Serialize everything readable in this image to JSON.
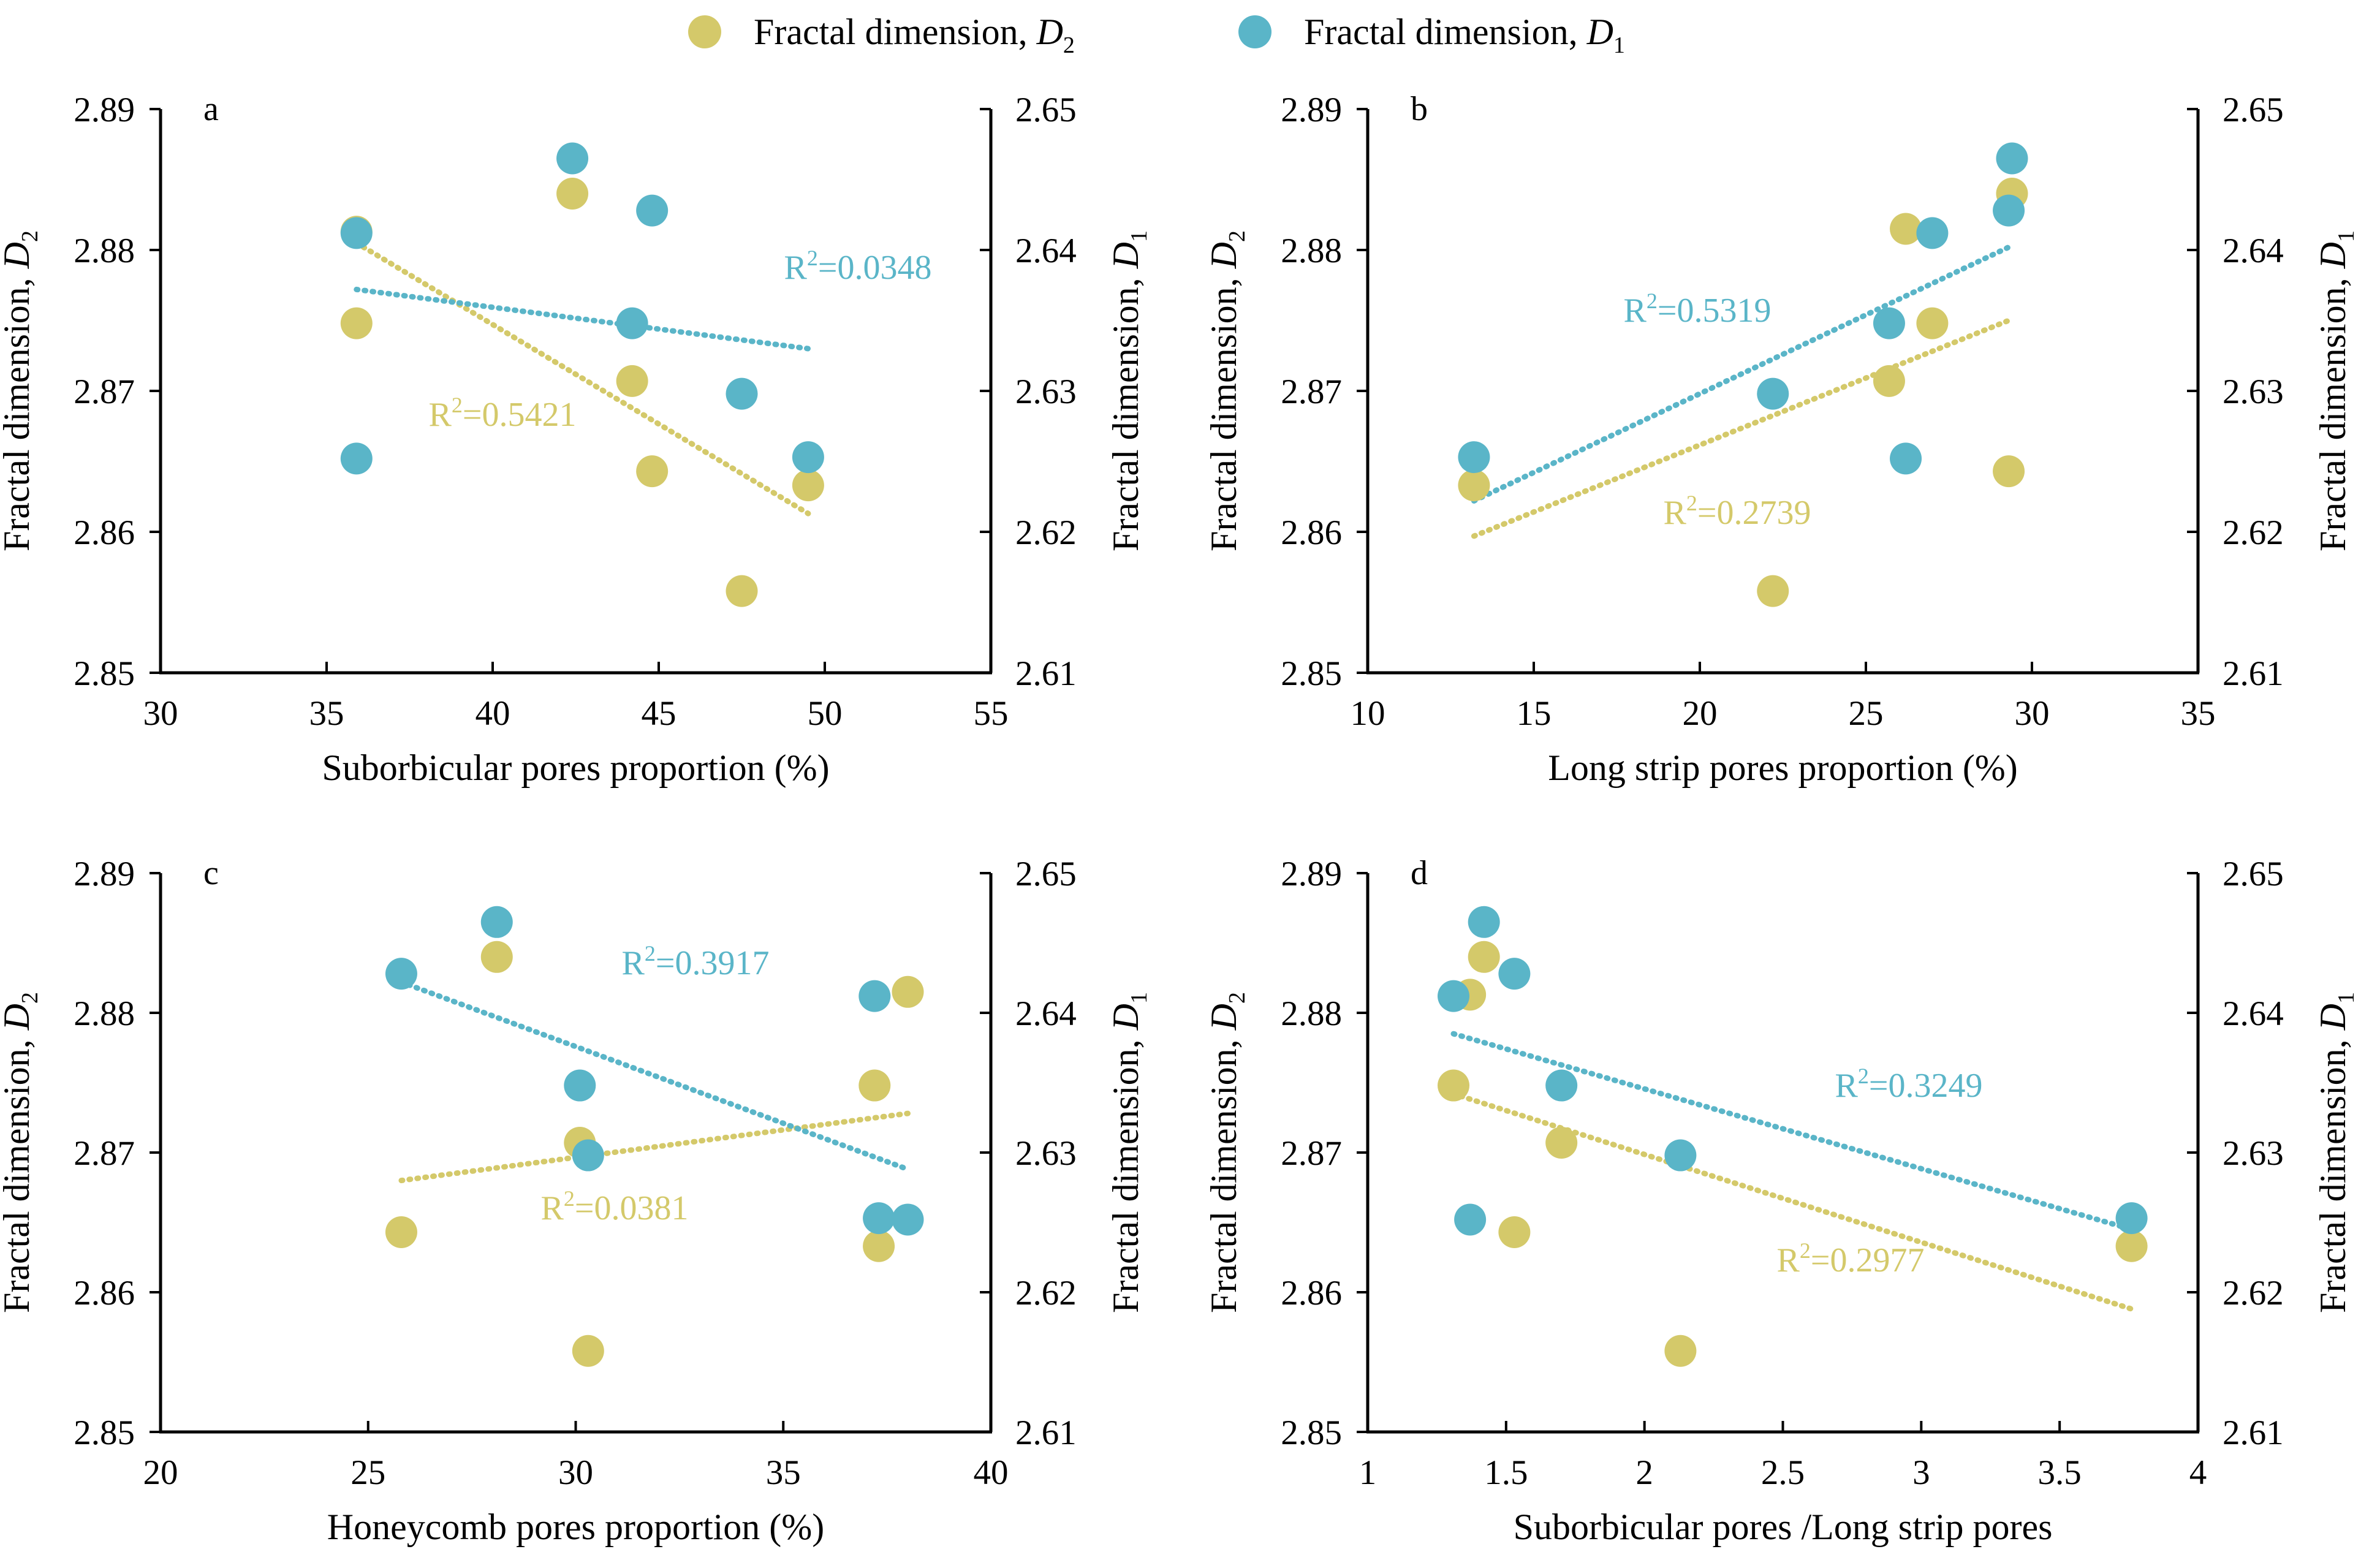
{
  "colors": {
    "d2": "#d4c96a",
    "d1": "#5ab5c8",
    "axis": "#000000"
  },
  "legend": [
    {
      "series": "D2",
      "prefix": "Fractal dimension, ",
      "var": "D",
      "sub": "2"
    },
    {
      "series": "D1",
      "prefix": "Fractal dimension, ",
      "var": "D",
      "sub": "1"
    }
  ],
  "chart_data": [
    {
      "type": "scatter",
      "panel": "a",
      "xlabel": "Suborbicular pores proportion (%)",
      "ylabel_left": {
        "prefix": "Fractal dimension, ",
        "var": "D",
        "sub": "2"
      },
      "ylabel_right": {
        "prefix": "Fractal dimension, ",
        "var": "D",
        "sub": "1"
      },
      "xlim": [
        30,
        55
      ],
      "xticks": [
        30,
        35,
        40,
        45,
        50,
        55
      ],
      "ylim_left": [
        2.85,
        2.89
      ],
      "yticks_left": [
        "2.85",
        "2.86",
        "2.87",
        "2.88",
        "2.89"
      ],
      "ylim_right": [
        2.61,
        2.65
      ],
      "yticks_right": [
        "2.61",
        "2.62",
        "2.63",
        "2.64",
        "2.65"
      ],
      "series": [
        {
          "name": "D2",
          "x": [
            35.9,
            35.9,
            42.4,
            44.2,
            44.8,
            47.5,
            49.5
          ],
          "y": [
            2.8813,
            2.8748,
            2.884,
            2.8707,
            2.8643,
            2.8558,
            2.8633
          ],
          "trend": {
            "x": [
              35.9,
              49.5
            ],
            "y": [
              2.8805,
              2.8613
            ]
          },
          "r2": "0.5421"
        },
        {
          "name": "D1",
          "x": [
            35.9,
            35.9,
            42.4,
            44.2,
            44.8,
            47.5,
            49.5
          ],
          "y": [
            2.6412,
            2.6252,
            2.6465,
            2.6348,
            2.6428,
            2.6298,
            2.6253
          ],
          "trend": {
            "x": [
              35.9,
              49.5
            ],
            "y": [
              2.6372,
              2.633
            ]
          },
          "r2": "0.0348"
        }
      ]
    },
    {
      "type": "scatter",
      "panel": "b",
      "xlabel": "Long strip pores proportion (%)",
      "ylabel_left": {
        "prefix": "Fractal dimension, ",
        "var": "D",
        "sub": "2"
      },
      "ylabel_right": {
        "prefix": "Fractal dimension, ",
        "var": "D",
        "sub": "1"
      },
      "xlim": [
        10,
        35
      ],
      "xticks": [
        10,
        15,
        20,
        25,
        30,
        35
      ],
      "ylim_left": [
        2.85,
        2.89
      ],
      "yticks_left": [
        "2.85",
        "2.86",
        "2.87",
        "2.88",
        "2.89"
      ],
      "ylim_right": [
        2.61,
        2.65
      ],
      "yticks_right": [
        "2.61",
        "2.62",
        "2.63",
        "2.64",
        "2.65"
      ],
      "series": [
        {
          "name": "D2",
          "x": [
            13.2,
            22.2,
            25.7,
            26.2,
            27.0,
            29.3,
            29.4
          ],
          "y": [
            2.8633,
            2.8558,
            2.8707,
            2.8815,
            2.8748,
            2.8643,
            2.884
          ],
          "trend": {
            "x": [
              13.2,
              29.3
            ],
            "y": [
              2.8597,
              2.875
            ]
          },
          "r2": "0.2739"
        },
        {
          "name": "D1",
          "x": [
            13.2,
            22.2,
            25.7,
            26.2,
            27.0,
            29.3,
            29.4
          ],
          "y": [
            2.6253,
            2.6298,
            2.6348,
            2.6252,
            2.6412,
            2.6428,
            2.6465
          ],
          "trend": {
            "x": [
              13.2,
              29.3
            ],
            "y": [
              2.6222,
              2.6402
            ]
          },
          "r2": "0.5319"
        }
      ]
    },
    {
      "type": "scatter",
      "panel": "c",
      "xlabel": "Honeycomb pores proportion (%)",
      "ylabel_left": {
        "prefix": "Fractal dimension, ",
        "var": "D",
        "sub": "2"
      },
      "ylabel_right": {
        "prefix": "Fractal dimension, ",
        "var": "D",
        "sub": "1"
      },
      "xlim": [
        20,
        40
      ],
      "xticks": [
        20,
        25,
        30,
        35,
        40
      ],
      "ylim_left": [
        2.85,
        2.89
      ],
      "yticks_left": [
        "2.85",
        "2.86",
        "2.87",
        "2.88",
        "2.89"
      ],
      "ylim_right": [
        2.61,
        2.65
      ],
      "yticks_right": [
        "2.61",
        "2.62",
        "2.63",
        "2.64",
        "2.65"
      ],
      "series": [
        {
          "name": "D2",
          "x": [
            25.8,
            28.1,
            30.1,
            30.3,
            37.2,
            37.3,
            38.0
          ],
          "y": [
            2.8643,
            2.884,
            2.8707,
            2.8558,
            2.8748,
            2.8633,
            2.8815
          ],
          "trend": {
            "x": [
              25.8,
              38.0
            ],
            "y": [
              2.868,
              2.8728
            ]
          },
          "r2": "0.0381"
        },
        {
          "name": "D1",
          "x": [
            25.8,
            28.1,
            30.1,
            30.3,
            37.2,
            37.3,
            38.0
          ],
          "y": [
            2.6428,
            2.6465,
            2.6348,
            2.6298,
            2.6412,
            2.6253,
            2.6252
          ],
          "trend": {
            "x": [
              25.8,
              38.0
            ],
            "y": [
              2.6422,
              2.6288
            ]
          },
          "r2": "0.3917"
        }
      ]
    },
    {
      "type": "scatter",
      "panel": "d",
      "xlabel": "Suborbicular pores /Long strip pores",
      "ylabel_left": {
        "prefix": "Fractal dimension, ",
        "var": "D",
        "sub": "2"
      },
      "ylabel_right": {
        "prefix": "Fractal dimension, ",
        "var": "D",
        "sub": "1"
      },
      "xlim": [
        1,
        4
      ],
      "xticks": [
        "1",
        "1.5",
        "2",
        "2.5",
        "3",
        "3.5",
        "4"
      ],
      "ylim_left": [
        2.85,
        2.89
      ],
      "yticks_left": [
        "2.85",
        "2.86",
        "2.87",
        "2.88",
        "2.89"
      ],
      "ylim_right": [
        2.61,
        2.65
      ],
      "yticks_right": [
        "2.61",
        "2.62",
        "2.63",
        "2.64",
        "2.65"
      ],
      "series": [
        {
          "name": "D2",
          "x": [
            1.31,
            1.37,
            1.42,
            1.53,
            1.7,
            2.13,
            3.76
          ],
          "y": [
            2.8748,
            2.8813,
            2.884,
            2.8643,
            2.8707,
            2.8558,
            2.8633
          ],
          "trend": {
            "x": [
              1.31,
              3.76
            ],
            "y": [
              2.8742,
              2.8588
            ]
          },
          "r2": "0.2977"
        },
        {
          "name": "D1",
          "x": [
            1.31,
            1.37,
            1.42,
            1.53,
            1.7,
            2.13,
            3.76
          ],
          "y": [
            2.6412,
            2.6252,
            2.6465,
            2.6428,
            2.6348,
            2.6298,
            2.6253
          ],
          "trend": {
            "x": [
              1.31,
              3.76
            ],
            "y": [
              2.6385,
              2.6245
            ]
          },
          "r2": "0.3249"
        }
      ]
    }
  ]
}
